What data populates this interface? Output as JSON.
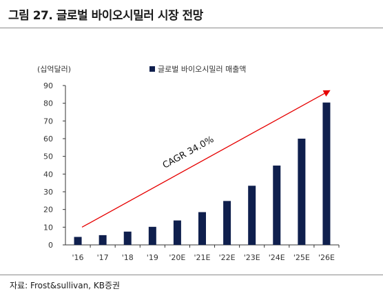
{
  "page": {
    "title": "그림 27. 글로벌 바이오시밀러 시장 전망",
    "source": "자료: Frost&sullivan, KB증권"
  },
  "chart_data": {
    "type": "bar",
    "unit_label": "(십억달러)",
    "categories": [
      "'16",
      "'17",
      "'18",
      "'19",
      "'20E",
      "'21E",
      "'22E",
      "'23E",
      "'24E",
      "'25E",
      "'26E"
    ],
    "series": [
      {
        "name": "글로벌 바이오시밀러 매출액",
        "values": [
          4.5,
          5.5,
          7.5,
          10.2,
          13.8,
          18.5,
          24.8,
          33.4,
          44.8,
          60.0,
          80.4
        ],
        "color": "#0f1f4d"
      }
    ],
    "ylim": [
      0,
      90
    ],
    "yticks": [
      0,
      10,
      20,
      30,
      40,
      50,
      60,
      70,
      80,
      90
    ],
    "grid": false,
    "legend_position": "top",
    "annotation": {
      "text": "CAGR 34.0%",
      "arrow_color": "#e60000"
    }
  }
}
